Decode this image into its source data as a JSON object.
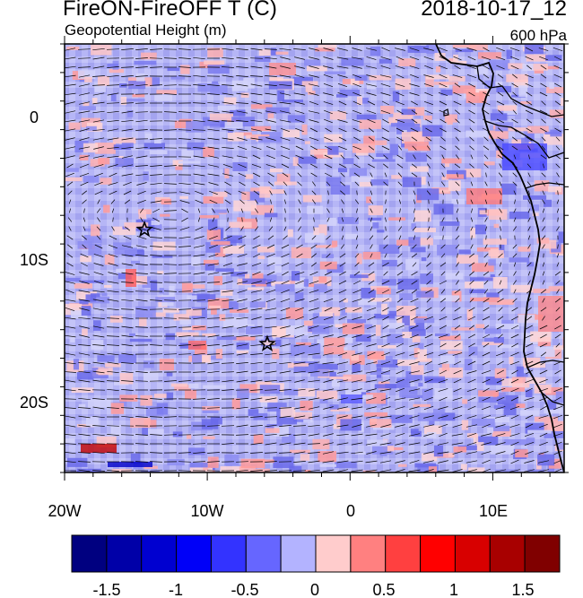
{
  "header": {
    "title": "FireON-FireOFF T (C)",
    "subtitle": "Geopotential Height (m)",
    "datetime": "2018-10-17_12",
    "level": "600 hPa"
  },
  "map": {
    "lon_range": [
      -20,
      15
    ],
    "lat_range": [
      -25,
      5
    ],
    "lon_ticks": [
      "20W",
      "10W",
      "0",
      "10E"
    ],
    "lat_ticks": [
      "0",
      "10S",
      "20S"
    ],
    "markers": [
      {
        "type": "star",
        "lon": -14.4,
        "lat": -8.0
      },
      {
        "type": "star",
        "lon": -5.8,
        "lat": -16.0
      }
    ]
  },
  "colorbar": {
    "labels": [
      "-1.5",
      "-1",
      "-0.5",
      "0",
      "0.5",
      "1",
      "1.5"
    ],
    "colors": [
      "#000080",
      "#0000a8",
      "#0000d0",
      "#0000f8",
      "#3333ff",
      "#6666ff",
      "#b3b3ff",
      "#ffcccc",
      "#ff8080",
      "#ff4040",
      "#ff0000",
      "#d80000",
      "#a80000",
      "#800000"
    ]
  }
}
